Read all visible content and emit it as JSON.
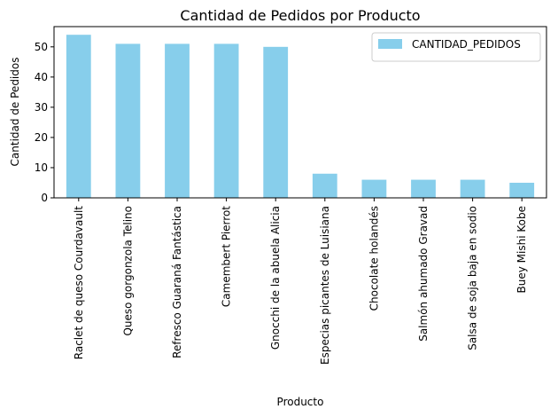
{
  "chart_data": {
    "type": "bar",
    "title": "Cantidad de Pedidos por Producto",
    "xlabel": "Producto",
    "ylabel": "Cantidad de Pedidos",
    "categories": [
      "Raclet de queso Courdavault",
      "Queso gorgonzola Telino",
      "Refresco Guaraná Fantástica",
      "Camembert Pierrot",
      "Gnocchi de la abuela Alicia",
      "Especias picantes de Luisiana",
      "Chocolate holandés",
      "Salmón ahumado Gravad",
      "Salsa de soja baja en sodio",
      "Buey Mishi Kobe"
    ],
    "series": [
      {
        "name": "CANTIDAD_PEDIDOS",
        "values": [
          54,
          51,
          51,
          51,
          50,
          8,
          6,
          6,
          6,
          5
        ],
        "color": "#87ceeb"
      }
    ],
    "ylim": [
      0,
      56.7
    ],
    "yticks": [
      0,
      10,
      20,
      30,
      40,
      50
    ],
    "grid": false,
    "legend_position": "top-right"
  }
}
